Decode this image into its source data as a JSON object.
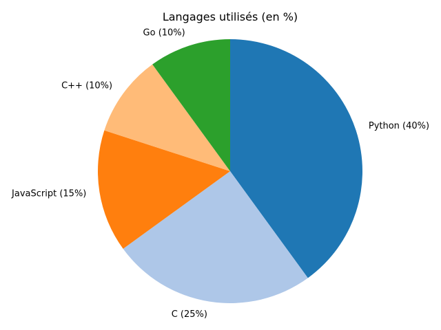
{
  "chart_data": {
    "type": "pie",
    "title": "Langages utilisés (en %)",
    "categories": [
      "Python",
      "C",
      "JavaScript",
      "C++",
      "Go"
    ],
    "values": [
      40,
      25,
      15,
      10,
      10
    ],
    "labels": [
      "Python (40%)",
      "C (25%)",
      "JavaScript (15%)",
      "C++ (10%)",
      "Go (10%)"
    ],
    "colors": [
      "#1f77b4",
      "#aec7e8",
      "#ff7f0e",
      "#ffbb78",
      "#2ca02c"
    ],
    "start_angle_deg": 90,
    "direction": "clockwise",
    "legend": "none"
  }
}
